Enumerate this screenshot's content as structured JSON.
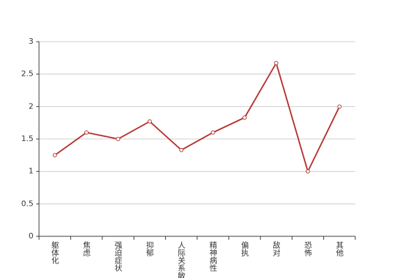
{
  "chart_data": {
    "type": "line",
    "categories": [
      "躯体化",
      "焦虑",
      "强迫症状",
      "抑郁",
      "人际关系敏感",
      "精神病性",
      "偏执",
      "敌对",
      "恐怖",
      "其他"
    ],
    "values": [
      1.25,
      1.6,
      1.5,
      1.77,
      1.33,
      1.6,
      1.83,
      2.67,
      1.0,
      2.0
    ],
    "color": "#b5342f",
    "ylim": [
      0,
      3
    ],
    "yticks": [
      0,
      0.5,
      1,
      1.5,
      2,
      2.5,
      3
    ],
    "grid": true
  }
}
